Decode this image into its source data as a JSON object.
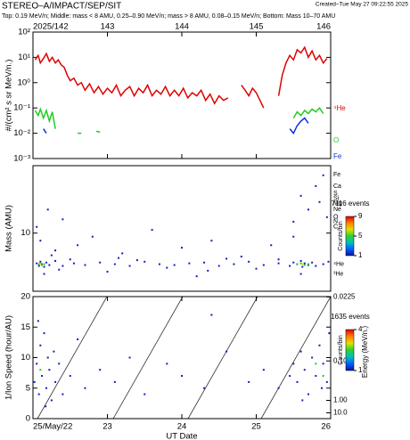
{
  "title": "STEREO–A/IMPACT/SEP/SIT",
  "created": "Created–Tue May 27 09:22:55 2025",
  "subtitle": "Top: 0.19 MeV/n; Middle: mass < 8 AMU, 0.25–0.90 MeV/n; mass > 8 AMU, 0.08–0.15 MeV/n; Bottom: Mass 10–70 AMU",
  "chart_data": [
    {
      "type": "line",
      "ylabel": "#/(cm² s sr MeV/n.)",
      "log_y": true,
      "xlim": [
        142,
        146
      ],
      "xticks": [
        {
          "value": 142,
          "label": "2025/142"
        },
        143,
        144,
        145,
        146
      ],
      "ylim": [
        0.001,
        100
      ],
      "yticks": [
        {
          "value": 100,
          "label": "10²"
        },
        {
          "value": 10,
          "label": "10¹"
        },
        {
          "value": 1,
          "label": "10⁰"
        },
        {
          "value": 0.1,
          "label": "10⁻¹"
        },
        {
          "value": 0.01,
          "label": "10⁻²"
        },
        {
          "value": 0.001,
          "label": "10⁻³"
        }
      ],
      "series": [
        {
          "name": "⁴He",
          "color": "#e00000",
          "x": [
            142.03,
            142.07,
            142.1,
            142.14,
            142.18,
            142.22,
            142.26,
            142.3,
            142.34,
            142.38,
            142.42,
            142.46,
            142.5,
            142.55,
            142.6,
            142.65,
            142.7,
            142.76,
            142.82,
            142.88,
            142.94,
            143.0,
            143.06,
            143.12,
            143.18,
            143.24,
            143.3,
            143.36,
            143.42,
            143.48,
            143.54,
            143.6,
            143.66,
            143.72,
            143.78,
            143.84,
            143.9,
            143.96,
            144.02,
            144.08,
            144.14,
            144.2,
            144.26,
            144.32,
            144.38,
            144.44,
            144.5,
            144.56,
            144.62,
            144.7,
            144.8,
            144.85,
            144.9,
            144.95,
            145.0,
            145.05,
            145.1,
            145.2,
            145.3,
            145.35,
            145.4,
            145.45,
            145.5,
            145.55,
            145.6,
            145.65,
            145.7,
            145.75,
            145.8,
            145.85,
            145.9,
            145.95
          ],
          "values": [
            8,
            12,
            6,
            9,
            14,
            7,
            10,
            6,
            8,
            5,
            4,
            2,
            1.2,
            1.5,
            0.8,
            1.0,
            0.5,
            0.9,
            0.4,
            0.7,
            0.35,
            0.6,
            0.4,
            0.8,
            0.3,
            0.5,
            0.7,
            0.3,
            0.6,
            0.4,
            0.8,
            0.3,
            0.5,
            0.35,
            0.7,
            0.3,
            0.5,
            0.3,
            0.6,
            0.25,
            0.4,
            0.3,
            0.5,
            0.2,
            0.35,
            0.15,
            0.3,
            0.2,
            0.25,
            null,
            0.8,
            0.5,
            0.3,
            0.6,
            0.4,
            0.2,
            0.1,
            null,
            0.3,
            2,
            6,
            12,
            8,
            20,
            15,
            25,
            10,
            18,
            8,
            12,
            6,
            9
          ]
        },
        {
          "name": "O",
          "color": "#22cc22",
          "x": [
            142.03,
            142.07,
            142.1,
            142.14,
            142.18,
            142.22,
            142.26,
            142.3,
            142.4,
            142.6,
            142.65,
            142.7,
            142.85,
            142.9,
            145.0,
            145.5,
            145.55,
            145.6,
            145.65,
            145.7,
            145.75,
            145.8,
            145.85,
            145.9
          ],
          "values": [
            0.08,
            0.05,
            0.09,
            0.04,
            0.08,
            0.03,
            0.07,
            0.015,
            null,
            0.01,
            0.01,
            null,
            0.012,
            0.011,
            null,
            0.04,
            0.07,
            0.05,
            0.08,
            0.06,
            0.09,
            0.07,
            0.1,
            0.06
          ]
        },
        {
          "name": "Fe",
          "color": "#1030e0",
          "x": [
            142.14,
            142.18,
            142.2,
            145.45,
            145.5,
            145.55,
            145.6,
            145.65,
            145.7
          ],
          "values": [
            0.015,
            0.01,
            null,
            0.015,
            0.01,
            0.02,
            0.03,
            0.04,
            0.025
          ]
        }
      ]
    },
    {
      "type": "scatter",
      "ylabel": "Mass (AMU)",
      "log_y": true,
      "xlim": [
        142,
        146
      ],
      "ylim": [
        1.8,
        73
      ],
      "yticks": [
        10
      ],
      "mass_labels": [
        {
          "label": "Fe",
          "value": 56
        },
        {
          "label": "Ca",
          "value": 40
        },
        {
          "label": "S",
          "value": 32
        },
        {
          "label": "Si",
          "value": 28
        },
        {
          "label": "Mg",
          "value": 24
        },
        {
          "label": "Ne",
          "value": 20
        },
        {
          "label": "O",
          "value": 16
        },
        {
          "label": "N",
          "value": 14
        },
        {
          "label": "C",
          "value": 12
        },
        {
          "label": "⁴He",
          "value": 4
        },
        {
          "label": "³He",
          "value": 3
        }
      ],
      "colorbar": {
        "title": "7116 events",
        "label": "Counts/bin",
        "lim": [
          1,
          9
        ],
        "ticks": [
          1,
          5,
          9
        ]
      },
      "series": [
        {
          "color": "#1020c0",
          "x": [
            142.05,
            142.08,
            142.1,
            142.12,
            142.15,
            142.18,
            142.22,
            142.3,
            142.4,
            142.55,
            142.7,
            142.9,
            143.1,
            143.3,
            143.5,
            143.7,
            143.9,
            144.1,
            144.3,
            144.5,
            144.7,
            144.9,
            145.1,
            145.3,
            145.45,
            145.5,
            145.55,
            145.6,
            145.62,
            145.65,
            145.7,
            145.75,
            145.8,
            145.9,
            145.97,
            142.05,
            142.1,
            142.2,
            142.3,
            142.4,
            142.6,
            142.8,
            143.2,
            143.6,
            144.0,
            144.4,
            144.8,
            145.2,
            145.5,
            145.6,
            145.7,
            145.8,
            145.9,
            145.95,
            145.85,
            145.5,
            142.15,
            143.0,
            144.2,
            145.6,
            142.5,
            143.4,
            143.8,
            144.6,
            145.0,
            145.3,
            142.25,
            142.35,
            143.15,
            144.35
          ],
          "values": [
            4.1,
            3.8,
            4.3,
            4.0,
            3.7,
            4.2,
            3.9,
            4.4,
            3.8,
            4.1,
            3.9,
            4.2,
            4.0,
            3.8,
            4.3,
            4.0,
            3.9,
            4.1,
            4.2,
            3.8,
            4.0,
            4.3,
            3.9,
            4.1,
            3.8,
            4.2,
            4.0,
            4.4,
            3.7,
            4.1,
            3.9,
            4.2,
            3.8,
            4.0,
            4.3,
            12,
            8,
            20,
            6,
            15,
            7,
            9,
            5.5,
            11,
            6.5,
            8,
            5,
            7,
            14,
            30,
            20,
            40,
            55,
            16,
            25,
            9,
            3,
            3.2,
            2.8,
            3.0,
            4.6,
            4.5,
            3.6,
            4.7,
            3.5,
            4.6,
            5.2,
            3.4,
            4.8,
            3.3
          ]
        },
        {
          "color": "#30c030",
          "x": [
            142.08,
            142.1,
            142.12,
            142.15,
            145.55,
            145.6,
            145.65,
            145.7
          ],
          "values": [
            4.0,
            4.1,
            3.9,
            4.0,
            4.0,
            4.1,
            3.9,
            4.0
          ]
        },
        {
          "color": "#e0e000",
          "x": [
            142.1,
            145.62
          ],
          "values": [
            4.0,
            4.0
          ]
        }
      ]
    },
    {
      "type": "scatter",
      "ylabel": "1/Ion Speed (hour/AU)",
      "xlabel": "UT Date",
      "xlim": [
        22,
        26
      ],
      "xticks": [
        {
          "value": 22,
          "label": "25/May/22"
        },
        23,
        24,
        25,
        26
      ],
      "ylim": [
        0,
        20
      ],
      "yticks": [
        0,
        5,
        10,
        15,
        20
      ],
      "y2label": "Energy (MeV/n.)",
      "y2ticks": [
        {
          "value": 0.0225,
          "label": "0.0225"
        },
        {
          "value": 0.1,
          "label": "0.100"
        },
        {
          "value": 1,
          "label": "1.00"
        },
        {
          "value": 10,
          "label": "10.0"
        }
      ],
      "colorbar": {
        "title": "1635 events",
        "label": "Counts/bin",
        "lim": [
          1,
          4
        ],
        "ticks": [
          1,
          4
        ]
      },
      "series": [
        {
          "color": "#1020c0",
          "x": [
            22.02,
            22.05,
            22.08,
            22.1,
            22.12,
            22.15,
            22.18,
            22.2,
            22.22,
            22.25,
            22.28,
            22.3,
            22.35,
            22.4,
            22.5,
            22.6,
            22.7,
            22.9,
            23.1,
            23.3,
            23.5,
            23.8,
            24.0,
            24.3,
            24.6,
            24.9,
            25.1,
            25.3,
            25.45,
            25.5,
            25.55,
            25.6,
            25.65,
            25.7,
            25.75,
            25.8,
            25.85,
            25.9,
            25.95,
            25.98,
            22.07,
            22.17,
            25.62,
            25.88,
            24.4
          ],
          "values": [
            6,
            9,
            4,
            12,
            7,
            14,
            5,
            10,
            8,
            3,
            11,
            6,
            9,
            4,
            7,
            13,
            5,
            8,
            6,
            10,
            4,
            9,
            7,
            5,
            11,
            6,
            8,
            5,
            7,
            9,
            6,
            11,
            8,
            4,
            10,
            7,
            12,
            9,
            6,
            14,
            16,
            2,
            3,
            5,
            17
          ]
        },
        {
          "color": "#30c030",
          "x": [
            22.1,
            25.8,
            25.9
          ],
          "values": [
            8,
            9,
            7
          ]
        }
      ]
    }
  ]
}
